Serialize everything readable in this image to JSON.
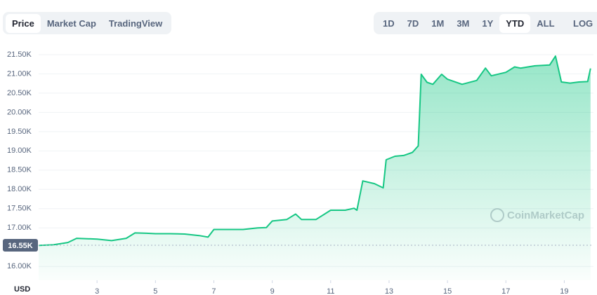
{
  "tabs": [
    "Price",
    "Market Cap",
    "TradingView"
  ],
  "ranges": [
    "1D",
    "7D",
    "1M",
    "3M",
    "1Y",
    "YTD",
    "ALL"
  ],
  "log_button": "LOG",
  "watermark": "CoinMarketCap",
  "chart_data": {
    "type": "area",
    "y_axis_label": "USD",
    "color": "#16c784",
    "x": [
      1,
      1.5,
      2,
      2.3,
      2.6,
      3,
      3.5,
      4,
      4.3,
      4.7,
      5,
      5.5,
      6,
      6.5,
      6.8,
      7,
      7.5,
      8,
      8.5,
      8.8,
      9,
      9.5,
      9.8,
      10,
      10.5,
      11,
      11.5,
      11.8,
      11.9,
      12.1,
      12.5,
      12.8,
      12.9,
      13.2,
      13.5,
      13.8,
      14.0,
      14.1,
      14.3,
      14.5,
      14.8,
      15.0,
      15.5,
      16.0,
      16.3,
      16.5,
      17.0,
      17.3,
      17.5,
      18.0,
      18.5,
      18.7,
      18.9,
      19.2,
      19.5,
      19.8,
      19.9
    ],
    "values": [
      16545,
      16560,
      16620,
      16730,
      16720,
      16710,
      16670,
      16730,
      16870,
      16860,
      16850,
      16850,
      16840,
      16800,
      16760,
      16960,
      16960,
      16960,
      17000,
      17010,
      17180,
      17220,
      17360,
      17220,
      17220,
      17460,
      17460,
      17510,
      17460,
      18220,
      18150,
      18040,
      18770,
      18860,
      18880,
      18960,
      19130,
      20990,
      20780,
      20730,
      20990,
      20860,
      20730,
      20830,
      21150,
      20950,
      21040,
      21180,
      21150,
      21210,
      21230,
      21460,
      20790,
      20760,
      20790,
      20800,
      21140
    ],
    "xlim": [
      1,
      20
    ],
    "xticks": [
      3,
      5,
      7,
      9,
      11,
      13,
      15,
      17,
      19
    ],
    "ylim": [
      15640,
      21790
    ],
    "yticks": [
      {
        "value": 16000,
        "label": "16.00K"
      },
      {
        "value": 17000,
        "label": "17.00K"
      },
      {
        "value": 17500,
        "label": "17.50K"
      },
      {
        "value": 18000,
        "label": "18.00K"
      },
      {
        "value": 18500,
        "label": "18.50K"
      },
      {
        "value": 19000,
        "label": "19.00K"
      },
      {
        "value": 19500,
        "label": "19.50K"
      },
      {
        "value": 20000,
        "label": "20.00K"
      },
      {
        "value": 20500,
        "label": "20.50K"
      },
      {
        "value": 21000,
        "label": "21.00K"
      },
      {
        "value": 21500,
        "label": "21.50K"
      }
    ],
    "reference_line": {
      "value": 16550,
      "label": "16.55K"
    },
    "grid": true
  }
}
